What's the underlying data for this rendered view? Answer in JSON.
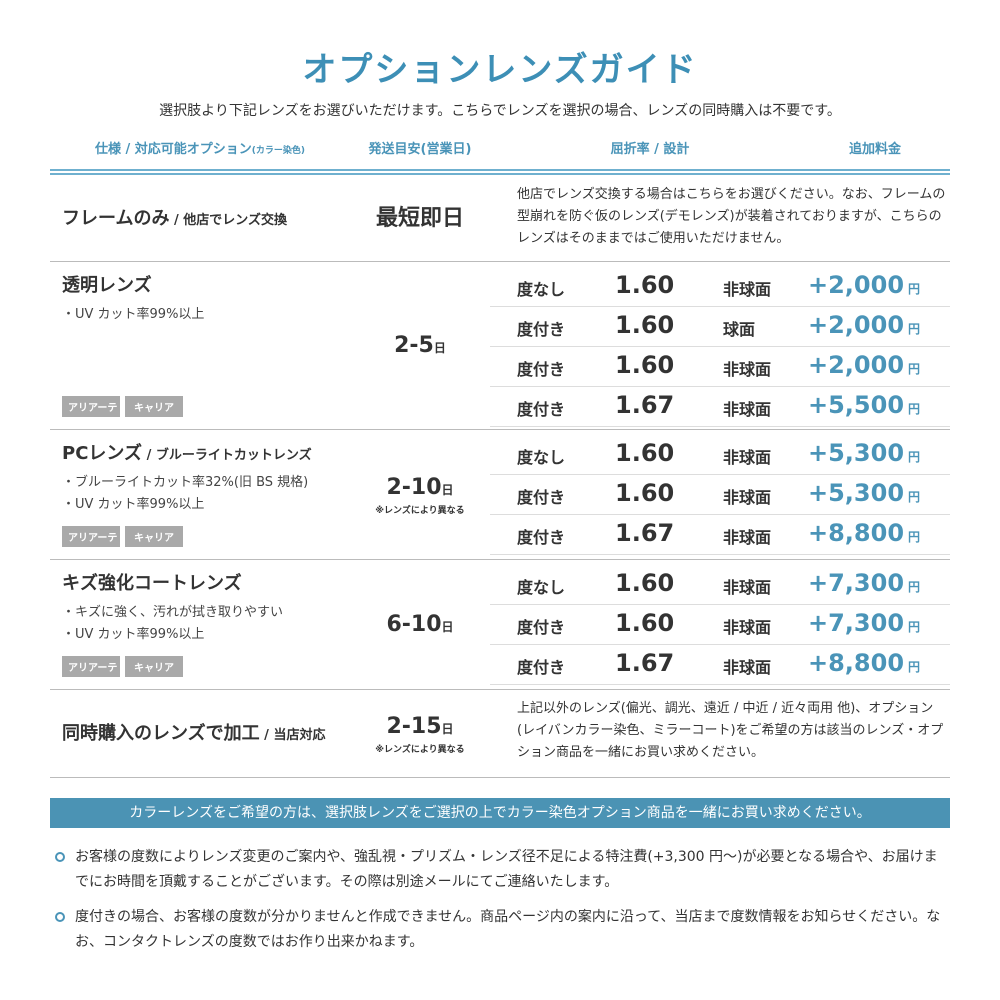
{
  "title": "オプションレンズガイド",
  "subtitle": "選択肢より下記レンズをお選びいただけます。こちらでレンズを選択の場合、レンズの同時購入は不要です。",
  "headers": {
    "spec": "仕様 / 対応可能オプション",
    "spec_small": "(カラー染色)",
    "ship": "発送目安(営業日)",
    "index": "屈折率 / 設計",
    "price": "追加料金"
  },
  "colors": {
    "accent": "#3d8fb6",
    "price": "#4a94b8",
    "banner": "#4b93b4",
    "tag": "#a9a9a9"
  },
  "rows": [
    {
      "name": "フレームのみ",
      "name_sub": " / 他店でレンズ交換",
      "bullets": [],
      "tags": [],
      "ship": "最短即日",
      "ship_unit": "",
      "ship_note": "",
      "desc": "他店でレンズ交換する場合はこちらをお選びください。なお、フレームの型崩れを防ぐ仮のレンズ(デモレンズ)が装着されておりますが、こちらのレンズはそのままではご使用いただけません。",
      "options": []
    },
    {
      "name": "透明レンズ",
      "name_sub": "",
      "bullets": [
        "・UV カット率99%以上"
      ],
      "tags": [
        "アリアーテ",
        "キャリア"
      ],
      "ship": "2-5",
      "ship_unit": "日",
      "ship_note": "",
      "desc": "",
      "options": [
        {
          "label": "度なし",
          "index": "1.60",
          "design": "非球面",
          "price": "+2,000",
          "unit": "円"
        },
        {
          "label": "度付き",
          "index": "1.60",
          "design": "球面",
          "price": "+2,000",
          "unit": "円"
        },
        {
          "label": "度付き",
          "index": "1.60",
          "design": "非球面",
          "price": "+2,000",
          "unit": "円"
        },
        {
          "label": "度付き",
          "index": "1.67",
          "design": "非球面",
          "price": "+5,500",
          "unit": "円"
        }
      ]
    },
    {
      "name": "PCレンズ",
      "name_sub": " / ブルーライトカットレンズ",
      "bullets": [
        "・ブルーライトカット率32%(旧 BS 規格)",
        "・UV カット率99%以上"
      ],
      "tags": [
        "アリアーテ",
        "キャリア"
      ],
      "ship": "2-10",
      "ship_unit": "日",
      "ship_note": "※レンズにより異なる",
      "desc": "",
      "options": [
        {
          "label": "度なし",
          "index": "1.60",
          "design": "非球面",
          "price": "+5,300",
          "unit": "円"
        },
        {
          "label": "度付き",
          "index": "1.60",
          "design": "非球面",
          "price": "+5,300",
          "unit": "円"
        },
        {
          "label": "度付き",
          "index": "1.67",
          "design": "非球面",
          "price": "+8,800",
          "unit": "円"
        }
      ]
    },
    {
      "name": "キズ強化コートレンズ",
      "name_sub": "",
      "bullets": [
        "・キズに強く、汚れが拭き取りやすい",
        "・UV カット率99%以上"
      ],
      "tags": [
        "アリアーテ",
        "キャリア"
      ],
      "ship": "6-10",
      "ship_unit": "日",
      "ship_note": "",
      "desc": "",
      "options": [
        {
          "label": "度なし",
          "index": "1.60",
          "design": "非球面",
          "price": "+7,300",
          "unit": "円"
        },
        {
          "label": "度付き",
          "index": "1.60",
          "design": "非球面",
          "price": "+7,300",
          "unit": "円"
        },
        {
          "label": "度付き",
          "index": "1.67",
          "design": "非球面",
          "price": "+8,800",
          "unit": "円"
        }
      ]
    },
    {
      "name": "同時購入のレンズで加工",
      "name_sub": " / 当店対応",
      "bullets": [],
      "tags": [],
      "ship": "2-15",
      "ship_unit": "日",
      "ship_note": "※レンズにより異なる",
      "desc": "上記以外のレンズ(偏光、調光、遠近 / 中近 / 近々両用 他)、オプション(レイバンカラー染色、ミラーコート)をご希望の方は該当のレンズ・オプション商品を一緒にお買い求めください。",
      "options": []
    }
  ],
  "banner": "カラーレンズをご希望の方は、選択肢レンズをご選択の上でカラー染色オプション商品を一緒にお買い求めください。",
  "notes": [
    "お客様の度数によりレンズ変更のご案内や、強乱視・プリズム・レンズ径不足による特注費(+3,300 円〜)が必要となる場合や、お届けまでにお時間を頂戴することがございます。その際は別途メールにてご連絡いたします。",
    "度付きの場合、お客様の度数が分かりませんと作成できません。商品ページ内の案内に沿って、当店まで度数情報をお知らせください。なお、コンタクトレンズの度数ではお作り出来かねます。"
  ]
}
